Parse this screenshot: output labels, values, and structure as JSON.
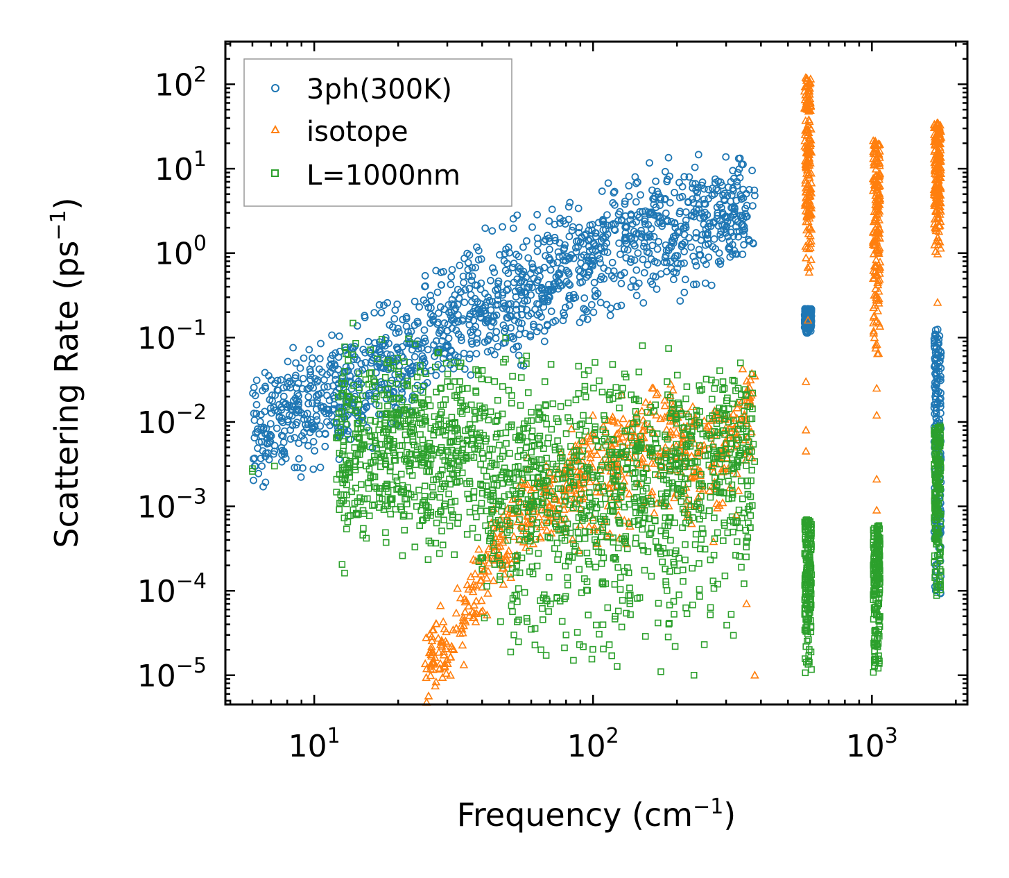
{
  "chart_data": {
    "type": "scatter",
    "title": "",
    "xlabel": "Frequency (cm",
    "xlabel_sup": "−1",
    "xlabel_suffix": ")",
    "ylabel": "Scattering Rate (ps",
    "ylabel_sup": "−1",
    "ylabel_suffix": ")",
    "xscale": "log",
    "yscale": "log",
    "xlim": [
      4.8,
      2200
    ],
    "ylim": [
      4.5e-06,
      320
    ],
    "x_ticks": [
      {
        "exp": 1,
        "base": "10",
        "sup": "1"
      },
      {
        "exp": 2,
        "base": "10",
        "sup": "2"
      },
      {
        "exp": 3,
        "base": "10",
        "sup": "3"
      }
    ],
    "y_ticks": [
      {
        "exp": -5,
        "base": "10",
        "sup": "−5"
      },
      {
        "exp": -4,
        "base": "10",
        "sup": "−4"
      },
      {
        "exp": -3,
        "base": "10",
        "sup": "−3"
      },
      {
        "exp": -2,
        "base": "10",
        "sup": "−2"
      },
      {
        "exp": -1,
        "base": "10",
        "sup": "−1"
      },
      {
        "exp": 0,
        "base": "10",
        "sup": "0"
      },
      {
        "exp": 1,
        "base": "10",
        "sup": "1"
      },
      {
        "exp": 2,
        "base": "10",
        "sup": "2"
      }
    ],
    "legend_position": "top-left",
    "series": [
      {
        "name": "3ph(300K)",
        "marker": "circle",
        "color": "#1f77b4",
        "trend": [
          [
            6,
            0.008
          ],
          [
            12,
            0.02
          ],
          [
            20,
            0.05
          ],
          [
            35,
            0.2
          ],
          [
            60,
            0.4
          ],
          [
            100,
            0.9
          ],
          [
            150,
            1.8
          ],
          [
            250,
            2.5
          ],
          [
            380,
            3.0
          ]
        ],
        "clusters": [
          {
            "x": 590,
            "ymin": 0.11,
            "ymax": 0.22
          },
          {
            "x": 1720,
            "ymin": 6e-05,
            "ymax": 0.13
          }
        ],
        "points": [
          [
            6.1,
            0.0105
          ],
          [
            6.1,
            0.0065
          ],
          [
            7.2,
            0.0045
          ],
          [
            11.8,
            0.016
          ],
          [
            12.5,
            0.03
          ],
          [
            13.2,
            0.04
          ],
          [
            14,
            0.02
          ],
          [
            16,
            0.05
          ],
          [
            18.5,
            0.025
          ],
          [
            19.5,
            0.015
          ],
          [
            22,
            0.04
          ],
          [
            25,
            0.09
          ],
          [
            27,
            0.06
          ],
          [
            30,
            0.12
          ],
          [
            32,
            0.15
          ],
          [
            36,
            0.38
          ],
          [
            42,
            0.3
          ],
          [
            52,
            0.45
          ],
          [
            67,
            0.09
          ],
          [
            75,
            0.55
          ],
          [
            92,
            0.17
          ],
          [
            120,
            2.2
          ],
          [
            160,
            3.0
          ],
          [
            240,
            1.1
          ],
          [
            280,
            5.5
          ],
          [
            310,
            0.9
          ],
          [
            380,
            4.8
          ]
        ]
      },
      {
        "name": "isotope",
        "marker": "triangle",
        "color": "#ff7f0e",
        "trend": [
          [
            25,
            1e-05
          ],
          [
            35,
            5e-05
          ],
          [
            45,
            0.0003
          ],
          [
            60,
            0.0009
          ],
          [
            80,
            0.002
          ],
          [
            100,
            0.004
          ],
          [
            150,
            0.006
          ],
          [
            190,
            0.012
          ],
          [
            250,
            0.004
          ],
          [
            380,
            0.015
          ]
        ],
        "clusters": [
          {
            "x": 590,
            "ymin": 0.5,
            "ymax": 120
          },
          {
            "x": 1040,
            "ymin": 0.06,
            "ymax": 22
          },
          {
            "x": 1720,
            "ymin": 0.8,
            "ymax": 35
          }
        ],
        "points": [
          [
            190,
            0.028
          ],
          [
            380,
            0.035
          ],
          [
            590,
            0.16
          ],
          [
            580,
            0.03
          ],
          [
            580,
            0.008
          ],
          [
            580,
            0.0045
          ],
          [
            1040,
            0.025
          ],
          [
            1040,
            0.012
          ],
          [
            1040,
            0.0021
          ],
          [
            1040,
            0.0009
          ],
          [
            1720,
            0.26
          ],
          [
            380,
            1e-05
          ],
          [
            355,
            7e-05
          ]
        ]
      },
      {
        "name": "L=1000nm",
        "marker": "square",
        "color": "#2ca02c",
        "trend": [
          [
            12,
            0.005
          ],
          [
            20,
            0.005
          ],
          [
            40,
            0.004
          ],
          [
            60,
            0.003
          ],
          [
            100,
            0.0025
          ],
          [
            200,
            0.003
          ],
          [
            300,
            0.007
          ],
          [
            380,
            0.004
          ]
        ],
        "clusters": [
          {
            "x": 590,
            "ymin": 1e-05,
            "ymax": 0.0007
          },
          {
            "x": 1040,
            "ymin": 1e-05,
            "ymax": 0.0006
          },
          {
            "x": 1720,
            "ymin": 7e-05,
            "ymax": 0.009
          }
        ],
        "points": [
          [
            6,
            0.0028
          ],
          [
            6,
            0.0026
          ],
          [
            7.2,
            0.003
          ],
          [
            12,
            0.0065
          ],
          [
            13,
            0.0025
          ],
          [
            18,
            0.0032
          ],
          [
            21,
            0.0008
          ],
          [
            32,
            0.00115
          ],
          [
            37,
            0.00055
          ],
          [
            40,
            0.00018
          ],
          [
            52,
            3e-05
          ],
          [
            80,
            3e-05
          ],
          [
            85,
            1.5e-05
          ],
          [
            120,
            5e-05
          ],
          [
            175,
            1.1e-05
          ],
          [
            230,
            1e-05
          ],
          [
            280,
            0.00012
          ]
        ]
      }
    ]
  }
}
